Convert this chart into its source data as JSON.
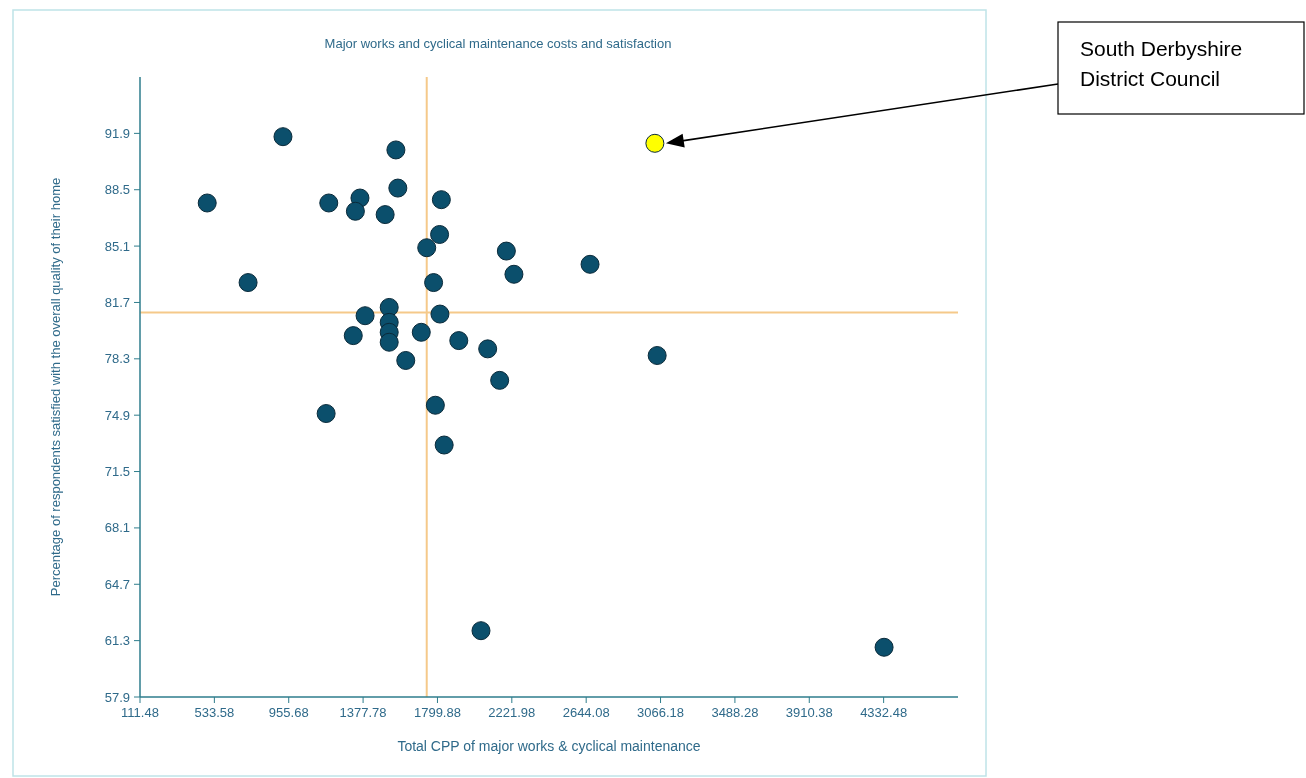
{
  "chart_data": {
    "type": "scatter",
    "title": "Major works and cyclical maintenance costs and satisfaction",
    "xlabel": "Total CPP of major works & cyclical maintenance",
    "ylabel": "Percentage of respondents satisfied with the overall quality of their home",
    "xlim": [
      111.48,
      4754.58
    ],
    "xticks": [
      111.48,
      533.58,
      955.68,
      1377.78,
      1799.88,
      2221.98,
      2644.08,
      3066.18,
      3488.28,
      3910.38,
      4332.48
    ],
    "ylim": [
      57.9,
      95.3
    ],
    "yticks": [
      57.9,
      61.3,
      64.7,
      68.1,
      71.5,
      74.9,
      78.3,
      81.7,
      85.1,
      88.5,
      91.9
    ],
    "grid": false,
    "marker": "circle",
    "series": [
      {
        "color": "#0b4f6c",
        "x": [
          923,
          1564,
          1575,
          493,
          1183,
          1360,
          1334,
          1503,
          1822,
          1812,
          1739,
          2191,
          2234,
          725,
          1778,
          1526,
          1389,
          1814,
          1526,
          1526,
          1322,
          1708,
          1526,
          1921,
          2085,
          1620,
          2153,
          1168,
          1788,
          1838,
          2047,
          4335,
          2666,
          3047
        ],
        "values": [
          91.7,
          90.9,
          88.6,
          87.7,
          87.7,
          88.0,
          87.2,
          87.0,
          87.9,
          85.8,
          85.0,
          84.8,
          83.4,
          82.9,
          82.9,
          81.4,
          80.9,
          81.0,
          80.5,
          79.9,
          79.7,
          79.9,
          79.3,
          79.4,
          78.9,
          78.2,
          77.0,
          75.0,
          75.5,
          73.1,
          61.9,
          60.9,
          84.0,
          78.5
        ]
      },
      {
        "color": "#ffff00",
        "x": [
          3034
        ],
        "values": [
          91.3
        ]
      }
    ],
    "ref_lines": [
      {
        "axis": "x",
        "value": 1739,
        "color": "#f5c98a"
      },
      {
        "axis": "y",
        "value": 81.1,
        "color": "#f5c98a"
      }
    ],
    "annotations": [
      "South Derbyshire District Council"
    ]
  }
}
